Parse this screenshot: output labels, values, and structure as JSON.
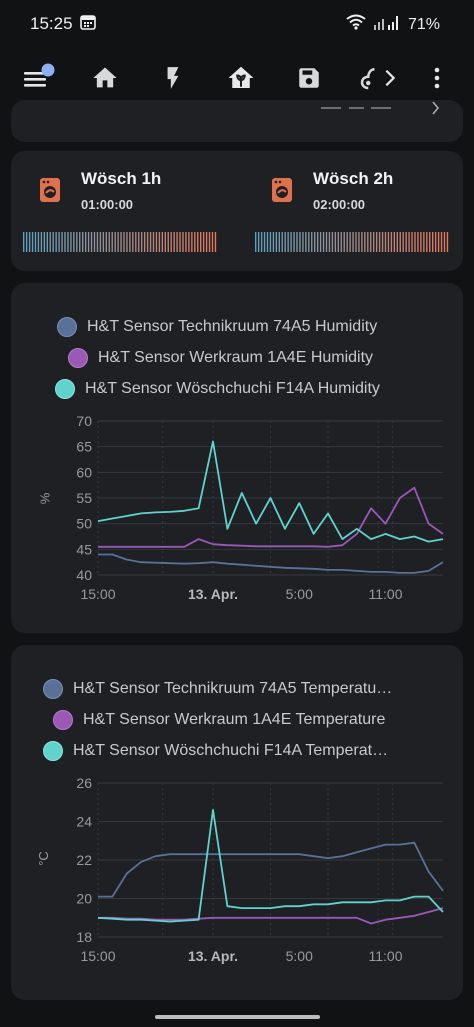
{
  "status": {
    "time": "15:25",
    "battery": "71%"
  },
  "toolbar": {
    "icons": [
      "menu-icon",
      "home-icon",
      "energy-icon",
      "plant-home-icon",
      "save-icon",
      "sensor-icon",
      "chevron-right-icon",
      "more-icon"
    ],
    "selected_index": 3,
    "accent": "#7ea5e8"
  },
  "timers": [
    {
      "name": "Wösch 1h",
      "time": "01:00:00"
    },
    {
      "name": "Wösch 2h",
      "time": "02:00:00"
    }
  ],
  "colors": {
    "card": "#1e2024",
    "series1": "#5a7197",
    "series2": "#9b59b6",
    "series3": "#5fd3cc",
    "washer_icon": "#e0714e"
  },
  "humidity_chart": {
    "legend": [
      "H&T Sensor Technikruum 74A5 Humidity",
      "H&T Sensor Werkraum 1A4E Humidity",
      "H&T Sensor Wöschchuchi F14A Humidity"
    ],
    "ylabel": "%",
    "yticks": [
      "70",
      "65",
      "60",
      "55",
      "50",
      "45",
      "40"
    ],
    "xticks": [
      "15:00",
      "13. Apr.",
      "5:00",
      "11:00"
    ]
  },
  "temperature_chart": {
    "legend": [
      "H&T Sensor Technikruum 74A5 Temperatu…",
      "H&T Sensor Werkraum 1A4E Temperature",
      "H&T Sensor Wöschchuchi F14A Temperat…"
    ],
    "ylabel": "°C",
    "yticks": [
      "26",
      "24",
      "22",
      "20",
      "18"
    ],
    "xticks": [
      "15:00",
      "13. Apr.",
      "5:00",
      "11:00"
    ]
  },
  "chart_data": [
    {
      "type": "line",
      "ylabel": "%",
      "ylim": [
        40,
        70
      ],
      "x_hours": [
        0,
        1,
        2,
        3,
        4,
        5,
        6,
        7,
        8,
        9,
        10,
        11,
        12,
        13,
        14,
        15,
        16,
        17,
        18,
        19,
        20,
        21,
        22,
        23,
        24
      ],
      "x_labels": [
        "15:00",
        "13. Apr.",
        "5:00",
        "11:00"
      ],
      "series": [
        {
          "name": "H&T Sensor Technikruum 74A5 Humidity",
          "values": [
            44,
            44,
            43,
            42.5,
            42.4,
            42.3,
            42.2,
            42.3,
            42.5,
            42.2,
            42,
            41.8,
            41.6,
            41.4,
            41.3,
            41.2,
            41,
            41,
            40.8,
            40.6,
            40.6,
            40.4,
            40.4,
            40.8,
            42.5
          ]
        },
        {
          "name": "H&T Sensor Werkraum 1A4E Humidity",
          "values": [
            45.5,
            45.5,
            45.5,
            45.5,
            45.5,
            45.5,
            45.5,
            47,
            46,
            45.8,
            45.7,
            45.6,
            45.6,
            45.6,
            45.6,
            45.6,
            45.5,
            45.8,
            48,
            53,
            50,
            55,
            57,
            50,
            48
          ]
        },
        {
          "name": "H&T Sensor Wöschchuchi F14A Humidity",
          "values": [
            50.5,
            51,
            51.5,
            52,
            52.2,
            52.3,
            52.5,
            53,
            66,
            49,
            56,
            50,
            55,
            49,
            54,
            48,
            52,
            47,
            49,
            47,
            48,
            47,
            47.5,
            46.5,
            47
          ]
        }
      ]
    },
    {
      "type": "line",
      "ylabel": "°C",
      "ylim": [
        18,
        26
      ],
      "x_hours": [
        0,
        1,
        2,
        3,
        4,
        5,
        6,
        7,
        8,
        9,
        10,
        11,
        12,
        13,
        14,
        15,
        16,
        17,
        18,
        19,
        20,
        21,
        22,
        23,
        24
      ],
      "x_labels": [
        "15:00",
        "13. Apr.",
        "5:00",
        "11:00"
      ],
      "series": [
        {
          "name": "H&T Sensor Technikruum 74A5 Temperature",
          "values": [
            20.1,
            20.1,
            21.3,
            21.9,
            22.2,
            22.3,
            22.3,
            22.3,
            22.3,
            22.3,
            22.3,
            22.3,
            22.3,
            22.3,
            22.3,
            22.2,
            22.1,
            22.2,
            22.4,
            22.6,
            22.8,
            22.8,
            22.9,
            21.4,
            20.4
          ]
        },
        {
          "name": "H&T Sensor Werkraum 1A4E Temperature",
          "values": [
            19,
            19,
            18.95,
            18.95,
            18.9,
            18.9,
            18.9,
            18.95,
            19,
            19,
            19,
            19,
            19,
            19,
            19,
            19,
            19,
            19,
            19,
            18.7,
            18.9,
            19,
            19.1,
            19.3,
            19.5
          ]
        },
        {
          "name": "H&T Sensor Wöschchuchi F14A Temperature",
          "values": [
            19,
            18.95,
            18.9,
            18.9,
            18.85,
            18.8,
            18.85,
            18.9,
            24.6,
            19.6,
            19.5,
            19.5,
            19.5,
            19.6,
            19.6,
            19.7,
            19.7,
            19.8,
            19.8,
            19.8,
            19.9,
            19.9,
            20.1,
            20.1,
            19.3
          ]
        }
      ]
    }
  ]
}
